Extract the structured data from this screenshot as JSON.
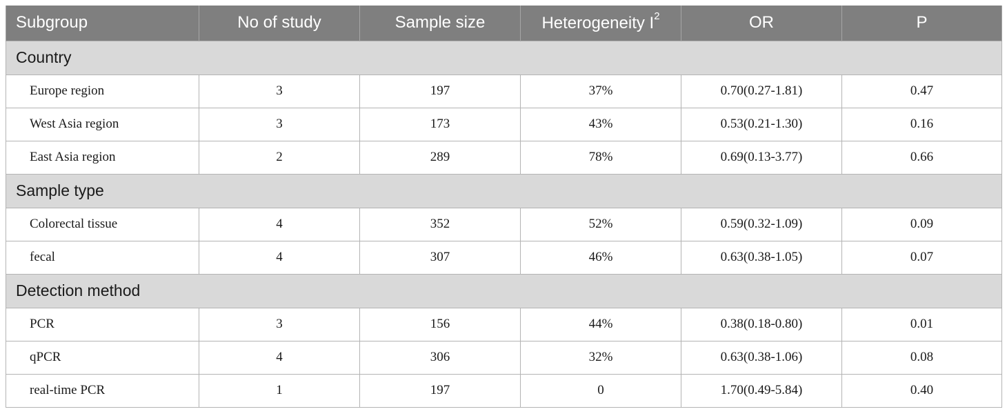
{
  "header": {
    "subgroup": "Subgroup",
    "no_of_study": "No of study",
    "sample_size": "Sample size",
    "heterogeneity": "Heterogeneity I",
    "heterogeneity_sup": "2",
    "or": "OR",
    "p": "P"
  },
  "groups": [
    {
      "title": "Country",
      "rows": [
        {
          "label": "Europe region",
          "n": "3",
          "size": "197",
          "het": "37%",
          "or": "0.70(0.27-1.81)",
          "p": "0.47"
        },
        {
          "label": "West Asia region",
          "n": "3",
          "size": "173",
          "het": "43%",
          "or": "0.53(0.21-1.30)",
          "p": "0.16"
        },
        {
          "label": "East Asia region",
          "n": "2",
          "size": "289",
          "het": "78%",
          "or": "0.69(0.13-3.77)",
          "p": "0.66"
        }
      ]
    },
    {
      "title": "Sample type",
      "rows": [
        {
          "label": "Colorectal tissue",
          "n": "4",
          "size": "352",
          "het": "52%",
          "or": "0.59(0.32-1.09)",
          "p": "0.09"
        },
        {
          "label": "fecal",
          "n": "4",
          "size": "307",
          "het": "46%",
          "or": "0.63(0.38-1.05)",
          "p": "0.07"
        }
      ]
    },
    {
      "title": "Detection method",
      "rows": [
        {
          "label": "PCR",
          "n": "3",
          "size": "156",
          "het": "44%",
          "or": "0.38(0.18-0.80)",
          "p": "0.01"
        },
        {
          "label": "qPCR",
          "n": "4",
          "size": "306",
          "het": "32%",
          "or": "0.63(0.38-1.06)",
          "p": "0.08"
        },
        {
          "label": "real-time PCR",
          "n": "1",
          "size": "197",
          "het": "0",
          "or": "1.70(0.49-5.84)",
          "p": "0.40"
        }
      ]
    }
  ]
}
